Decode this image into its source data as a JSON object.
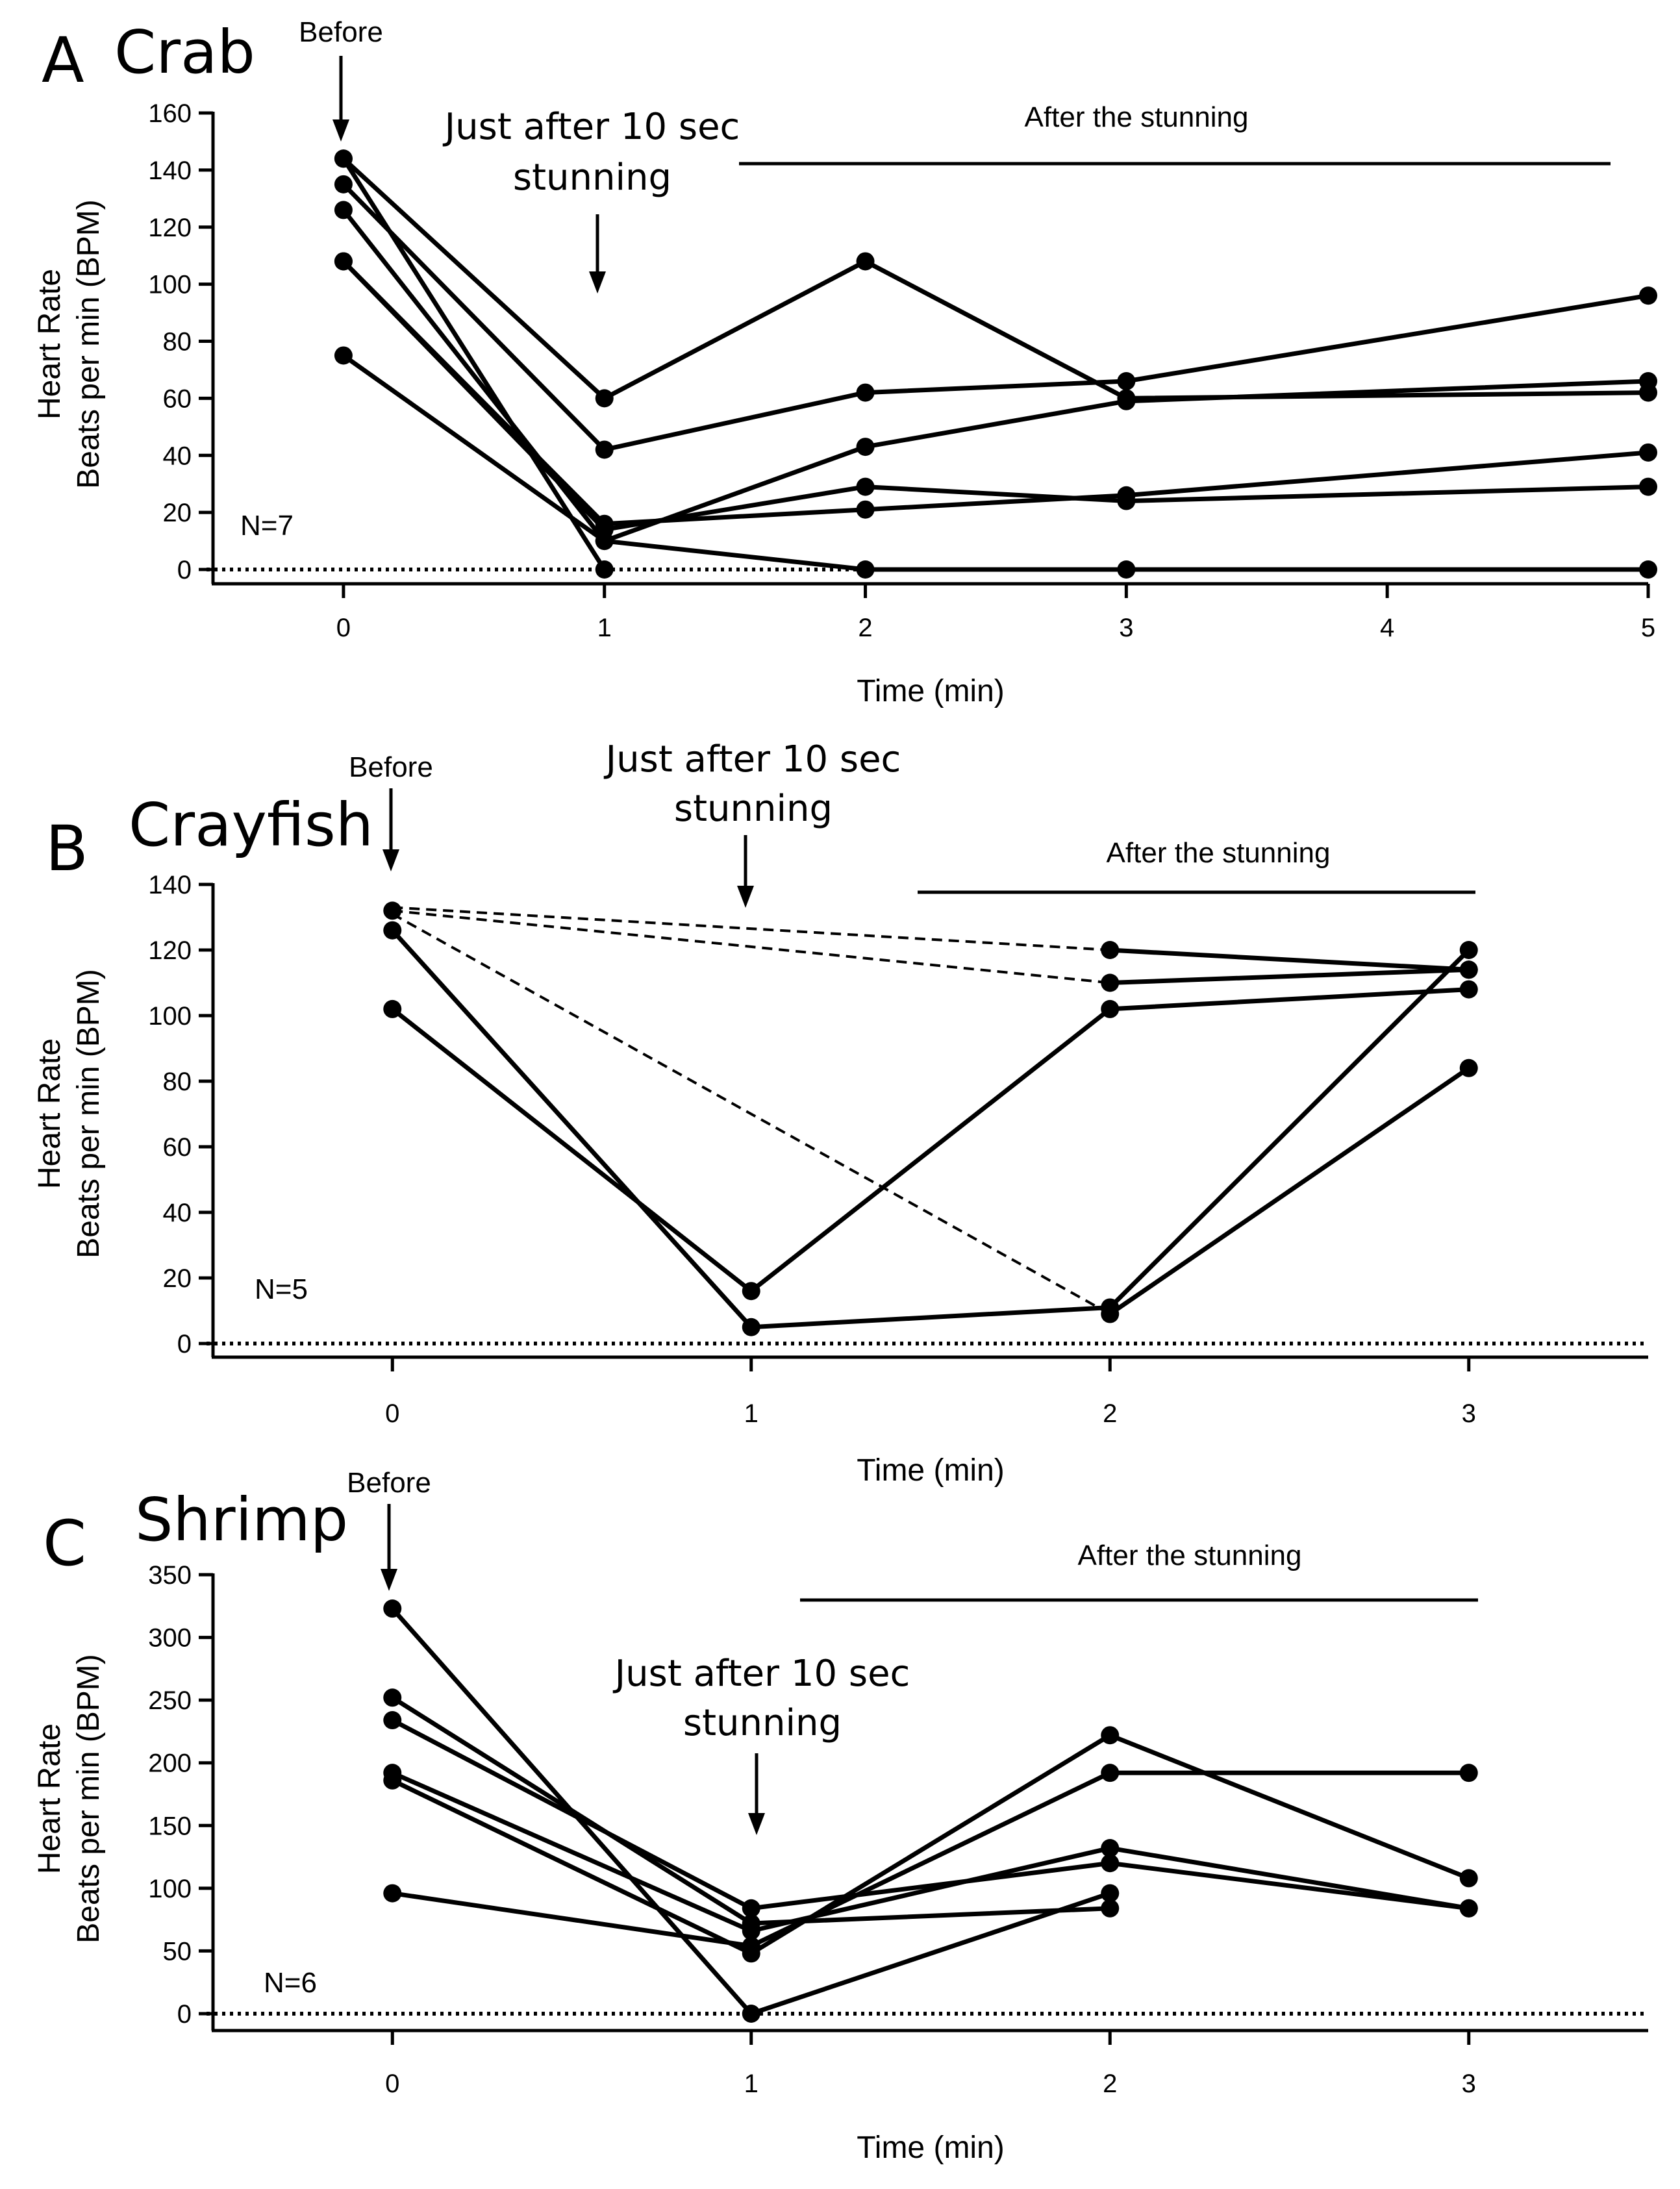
{
  "chart_data": [
    {
      "type": "line",
      "panel_letter": "A",
      "title": "Crab",
      "xlabel": "Time (min)",
      "ylabel_line1": "Heart Rate",
      "ylabel_line2": "Beats per min (BPM)",
      "xlim": [
        -0.5,
        5
      ],
      "ylim": [
        0,
        160
      ],
      "xticks": [
        0,
        1,
        2,
        3,
        4,
        5
      ],
      "yticks": [
        0,
        20,
        40,
        60,
        80,
        100,
        120,
        140,
        160
      ],
      "n_label": "N=7",
      "annotations": {
        "before": "Before",
        "stun_line1": "Just after 10 sec",
        "stun_line2": "stunning",
        "after": "After the stunning"
      },
      "series": [
        {
          "name": "crab-1",
          "points": [
            [
              0,
              144
            ],
            [
              1,
              60
            ],
            [
              2,
              108
            ],
            [
              3,
              60
            ],
            [
              5,
              62
            ]
          ]
        },
        {
          "name": "crab-2",
          "points": [
            [
              0,
              135
            ],
            [
              1,
              42
            ],
            [
              2,
              62
            ],
            [
              3,
              66
            ],
            [
              5,
              96
            ]
          ]
        },
        {
          "name": "crab-3",
          "points": [
            [
              0,
              126
            ],
            [
              1,
              10
            ],
            [
              2,
              43
            ],
            [
              3,
              59
            ],
            [
              5,
              66
            ]
          ]
        },
        {
          "name": "crab-4",
          "points": [
            [
              0,
              108
            ],
            [
              1,
              16
            ],
            [
              2,
              21
            ],
            [
              3,
              26
            ],
            [
              5,
              41
            ]
          ]
        },
        {
          "name": "crab-5",
          "points": [
            [
              0,
              108
            ],
            [
              1,
              14
            ],
            [
              2,
              29
            ],
            [
              3,
              24
            ],
            [
              5,
              29
            ]
          ]
        },
        {
          "name": "crab-6",
          "points": [
            [
              0,
              75
            ],
            [
              1,
              10
            ],
            [
              2,
              0
            ],
            [
              3,
              0
            ],
            [
              5,
              0
            ]
          ]
        },
        {
          "name": "crab-7",
          "points": [
            [
              0,
              144
            ],
            [
              1,
              0
            ]
          ]
        }
      ],
      "dashed_series": []
    },
    {
      "type": "line",
      "panel_letter": "B",
      "title": "Crayfish",
      "xlabel": "Time (min)",
      "ylabel_line1": "Heart Rate",
      "ylabel_line2": "Beats per min (BPM)",
      "xlim": [
        -0.5,
        3.5
      ],
      "ylim": [
        0,
        140
      ],
      "xticks": [
        0,
        1,
        2,
        3
      ],
      "yticks": [
        0,
        20,
        40,
        60,
        80,
        100,
        120,
        140
      ],
      "n_label": "N=5",
      "annotations": {
        "before": "Before",
        "stun_line1": "Just after 10 sec",
        "stun_line2": "stunning",
        "after": "After the stunning"
      },
      "series": [
        {
          "name": "crayfish-1",
          "points": [
            [
              0,
              126
            ],
            [
              1,
              5
            ],
            [
              2,
              11
            ],
            [
              3,
              120
            ]
          ]
        },
        {
          "name": "crayfish-2",
          "points": [
            [
              0,
              102
            ],
            [
              1,
              16
            ],
            [
              2,
              102
            ],
            [
              3,
              108
            ]
          ]
        },
        {
          "name": "crayfish-3",
          "points": [
            [
              2,
              120
            ],
            [
              3,
              114
            ]
          ]
        },
        {
          "name": "crayfish-4",
          "points": [
            [
              2,
              110
            ],
            [
              3,
              114
            ]
          ]
        },
        {
          "name": "crayfish-5",
          "points": [
            [
              2,
              9
            ],
            [
              3,
              84
            ]
          ]
        },
        {
          "name": "crayfish-start",
          "points": [
            [
              0,
              132
            ]
          ]
        }
      ],
      "dashed_series": [
        {
          "name": "crayfish-dash-1",
          "points": [
            [
              0,
              133
            ],
            [
              2,
              120
            ]
          ]
        },
        {
          "name": "crayfish-dash-2",
          "points": [
            [
              0,
              132
            ],
            [
              2,
              110
            ]
          ]
        },
        {
          "name": "crayfish-dash-3",
          "points": [
            [
              0,
              131
            ],
            [
              2,
              9
            ]
          ]
        }
      ]
    },
    {
      "type": "line",
      "panel_letter": "C",
      "title": "Shrimp",
      "xlabel": "Time (min)",
      "ylabel_line1": "Heart Rate",
      "ylabel_line2": "Beats per min (BPM)",
      "xlim": [
        -0.5,
        3.5
      ],
      "ylim": [
        0,
        350
      ],
      "xticks": [
        0,
        1,
        2,
        3
      ],
      "yticks": [
        0,
        50,
        100,
        150,
        200,
        250,
        300,
        350
      ],
      "n_label": "N=6",
      "annotations": {
        "before": "Before",
        "stun_line1": "Just after 10 sec",
        "stun_line2": "stunning",
        "after": "After the stunning"
      },
      "series": [
        {
          "name": "shrimp-1",
          "points": [
            [
              0,
              323
            ],
            [
              1,
              0
            ],
            [
              2,
              96
            ]
          ]
        },
        {
          "name": "shrimp-2",
          "points": [
            [
              0,
              252
            ],
            [
              1,
              72
            ],
            [
              2,
              84
            ]
          ]
        },
        {
          "name": "shrimp-3",
          "points": [
            [
              0,
              234
            ],
            [
              1,
              84
            ],
            [
              2,
              120
            ],
            [
              3,
              84
            ]
          ]
        },
        {
          "name": "shrimp-4",
          "points": [
            [
              0,
              192
            ],
            [
              1,
              66
            ],
            [
              2,
              132
            ],
            [
              3,
              84
            ]
          ]
        },
        {
          "name": "shrimp-5",
          "points": [
            [
              0,
              186
            ],
            [
              1,
              48
            ],
            [
              2,
              222
            ],
            [
              3,
              108
            ]
          ]
        },
        {
          "name": "shrimp-6",
          "points": [
            [
              0,
              96
            ],
            [
              1,
              54
            ],
            [
              2,
              192
            ],
            [
              3,
              192
            ]
          ]
        }
      ],
      "dashed_series": []
    }
  ]
}
